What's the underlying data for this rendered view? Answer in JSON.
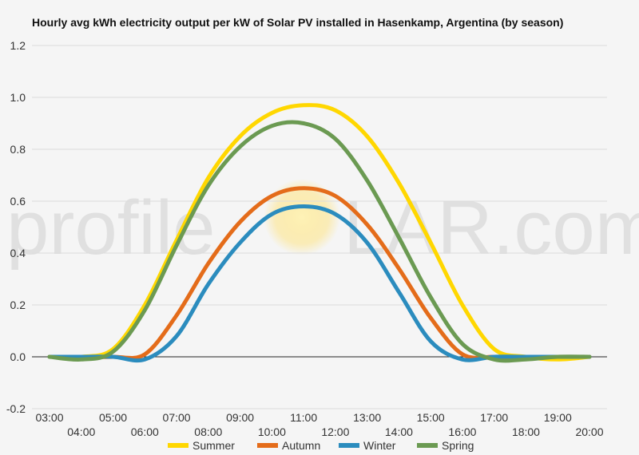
{
  "chart_data": {
    "type": "line",
    "title": "Hourly avg kWh electricity output per kW of Solar PV installed in Hasenkamp, Argentina (by season)",
    "xlabel": "",
    "ylabel": "",
    "x": [
      "03:00",
      "04:00",
      "05:00",
      "06:00",
      "07:00",
      "08:00",
      "09:00",
      "10:00",
      "11:00",
      "12:00",
      "13:00",
      "14:00",
      "15:00",
      "16:00",
      "17:00",
      "18:00",
      "19:00",
      "20:00"
    ],
    "ylim": [
      -0.2,
      1.2
    ],
    "yticks": [
      -0.2,
      0.0,
      0.2,
      0.4,
      0.6,
      0.8,
      1.0,
      1.2
    ],
    "ytick_labels": [
      "-0.2",
      "0.0",
      "0.2",
      "0.4",
      "0.6",
      "0.8",
      "1.0",
      "1.2"
    ],
    "grid": true,
    "legend_position": "bottom",
    "series": [
      {
        "name": "Summer",
        "color": "#FFD700",
        "values": [
          0.0,
          0.0,
          0.03,
          0.2,
          0.45,
          0.69,
          0.85,
          0.94,
          0.97,
          0.95,
          0.85,
          0.67,
          0.44,
          0.2,
          0.03,
          0.0,
          -0.01,
          0.0
        ]
      },
      {
        "name": "Autumn",
        "color": "#E46C1A",
        "values": [
          0.0,
          0.0,
          0.0,
          0.01,
          0.16,
          0.36,
          0.52,
          0.62,
          0.65,
          0.62,
          0.51,
          0.34,
          0.15,
          0.01,
          0.0,
          0.0,
          0.0,
          0.0
        ]
      },
      {
        "name": "Winter",
        "color": "#2B8CBE",
        "values": [
          0.0,
          0.0,
          0.0,
          -0.01,
          0.08,
          0.28,
          0.44,
          0.55,
          0.58,
          0.55,
          0.44,
          0.25,
          0.06,
          -0.01,
          0.0,
          0.0,
          0.0,
          0.0
        ]
      },
      {
        "name": "Spring",
        "color": "#6B9A52",
        "values": [
          0.0,
          -0.01,
          0.02,
          0.18,
          0.43,
          0.66,
          0.81,
          0.89,
          0.9,
          0.84,
          0.68,
          0.46,
          0.23,
          0.05,
          -0.01,
          -0.01,
          0.0,
          0.0
        ]
      }
    ]
  },
  "watermark": {
    "left": "profile",
    "right": "LAR.com"
  }
}
